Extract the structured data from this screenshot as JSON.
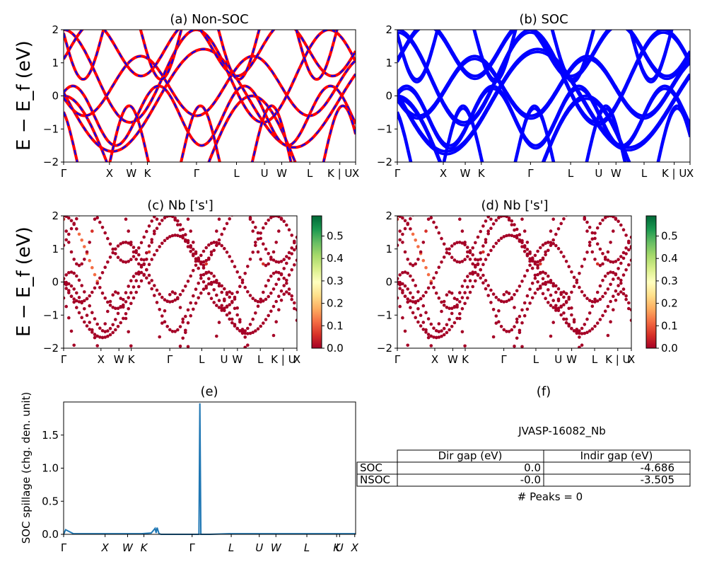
{
  "panels": {
    "a": {
      "title": "(a) Non-SOC"
    },
    "b": {
      "title": "(b) SOC"
    },
    "c": {
      "title": "(c)  Nb ['s']"
    },
    "d": {
      "title": "(d) Nb ['s']"
    },
    "e": {
      "title": "(e)"
    },
    "f": {
      "title": "(f)"
    }
  },
  "band_axes": {
    "ylabel": "E − E_f (eV)",
    "ylim": [
      -2,
      2
    ],
    "yticks": [
      "2",
      "1",
      "0",
      "−1",
      "−2"
    ],
    "kpath_labels": [
      "Γ",
      "X",
      "W",
      "K",
      "Γ",
      "L",
      "U",
      "W",
      "L",
      "K | U",
      "X"
    ]
  },
  "colorbar": {
    "ticks": [
      "0.0",
      "0.1",
      "0.2",
      "0.3",
      "0.4",
      "0.5"
    ],
    "range": [
      0,
      0.59
    ],
    "colormap": "RdYlGn"
  },
  "spillage_axes": {
    "ylabel": "SOC spillage (chg. den. unit)",
    "yticks": [
      "0.0",
      "0.5",
      "1.0",
      "1.5"
    ],
    "ylim": [
      0,
      2.0
    ],
    "kpath_labels": [
      "Γ",
      "X",
      "W",
      "K",
      "Γ",
      "L",
      "U",
      "W",
      "L",
      "K",
      "U",
      "X"
    ]
  },
  "table": {
    "material": "JVASP-16082_Nb",
    "headers": [
      "",
      "Dir gap (eV)",
      "Indir gap (eV)"
    ],
    "rows": [
      {
        "label": "SOC",
        "dir": "0.0",
        "indir": "-4.686"
      },
      {
        "label": "NSOC",
        "dir": "-0.0",
        "indir": "-3.505"
      }
    ],
    "peaks": "# Peaks = 0"
  },
  "colors": {
    "nonsoc_line": "#ff0000",
    "nonsoc_dash": "#0000ff",
    "soc_line": "#0000ff",
    "spillage_line": "#1f77b4"
  },
  "chart_data": [
    {
      "type": "line",
      "title": "(a) Non-SOC",
      "ylabel": "E − E_f (eV)",
      "ylim": [
        -2,
        2
      ],
      "x_ticks": [
        "Γ",
        "X",
        "W",
        "K",
        "Γ",
        "L",
        "U",
        "W",
        "L",
        "K | U",
        "X"
      ],
      "series": [
        {
          "name": "Non-SOC bands",
          "color": "#ff0000"
        }
      ]
    },
    {
      "type": "line",
      "title": "(b) SOC",
      "ylim": [
        -2,
        2
      ],
      "x_ticks": [
        "Γ",
        "X",
        "W",
        "K",
        "Γ",
        "L",
        "U",
        "W",
        "L",
        "K | U",
        "X"
      ],
      "series": [
        {
          "name": "SOC bands",
          "color": "#0000ff"
        }
      ]
    },
    {
      "type": "scatter",
      "title": "(c)  Nb ['s']",
      "ylim": [
        -2,
        2
      ],
      "colorbar_range": [
        0,
        0.59
      ]
    },
    {
      "type": "scatter",
      "title": "(d) Nb ['s']",
      "ylim": [
        -2,
        2
      ],
      "colorbar_range": [
        0,
        0.59
      ]
    },
    {
      "type": "line",
      "title": "(e)",
      "ylabel": "SOC spillage (chg. den. unit)",
      "ylim": [
        0,
        2.0
      ],
      "x": [
        0,
        0.02,
        0.1,
        0.3,
        0.4,
        0.5,
        0.6,
        0.7,
        0.8,
        0.9,
        0.94,
        0.95,
        0.96,
        0.98,
        1.0,
        1.1,
        1.2,
        1.3,
        1.39,
        1.4,
        1.41,
        1.5,
        1.7,
        2.0,
        2.3,
        2.8,
        3.0
      ],
      "y": [
        0.0,
        0.07,
        0.01,
        0.01,
        0.01,
        0.01,
        0.01,
        0.01,
        0.01,
        0.02,
        0.09,
        0.02,
        0.1,
        0.01,
        0.0,
        0.0,
        0.0,
        0.0,
        0.0,
        1.98,
        0.0,
        0.0,
        0.01,
        0.01,
        0.01,
        0.01,
        0.01
      ]
    },
    {
      "type": "table",
      "title": "(f)"
    }
  ]
}
